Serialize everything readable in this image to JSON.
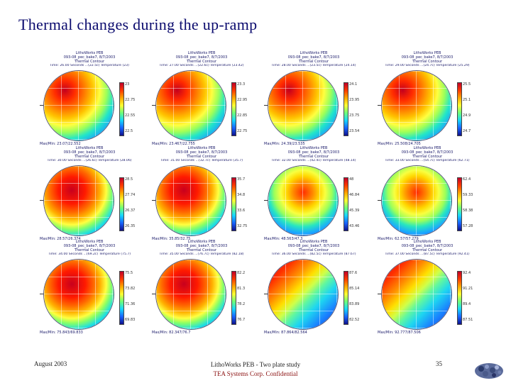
{
  "slide": {
    "title": "Thermal changes during the up-ramp"
  },
  "panels": [
    {
      "h1": "LithoWorks PEB",
      "h2": "093-08_pec_bake7, 8/7/2003",
      "h3": "Thermal Contour",
      "h4": "Time: 26.00 Seconds ...(22.5c) Temperature (23)",
      "ticks": [
        "23",
        "22.75",
        "22.55",
        "22.5"
      ],
      "maxmin": "Max/Min: 23.07/22.552",
      "temp": "cool"
    },
    {
      "h1": "LithoWorks PEB",
      "h2": "093-08_pec_bake7, 8/7/2003",
      "h3": "Thermal Contour",
      "h4": "Time: 27.00 Seconds ...(22.6c) Temperature (23.42)",
      "ticks": [
        "23.3",
        "22.95",
        "22.85",
        "22.75"
      ],
      "maxmin": "Max/Min: 23.467/22.755",
      "temp": "cool"
    },
    {
      "h1": "LithoWorks PEB",
      "h2": "093-08_pec_bake7, 8/7/2003",
      "h3": "Thermal Contour",
      "h4": "Time: 28.00 Seconds ...(23.5c) Temperature (24.14)",
      "ticks": [
        "24.1",
        "23.95",
        "23.75",
        "23.54"
      ],
      "maxmin": "Max/Min: 24.39/23.535",
      "temp": "cool"
    },
    {
      "h1": "LithoWorks PEB",
      "h2": "093-08_pec_bake7, 8/7/2003",
      "h3": "Thermal Contour",
      "h4": "Time: 29.00 Seconds ...(24.7c) Temperature (25.29)",
      "ticks": [
        "25.5",
        "25.1",
        "24.9",
        "24.7"
      ],
      "maxmin": "Max/Min: 25.508/24.705",
      "temp": "cool"
    },
    {
      "h1": "LithoWorks PEB",
      "h2": "093-08_pec_bake7, 8/7/2003",
      "h3": "Thermal Contour",
      "h4": "Time: 30.00 Seconds ...(26.6c) Temperature (28.06)",
      "ticks": [
        "28.5",
        "27.74",
        "26.37",
        "26.35"
      ],
      "maxmin": "Max/Min: 28.57/26.374",
      "temp": "warm"
    },
    {
      "h1": "LithoWorks PEB",
      "h2": "093-08_pec_bake7, 8/7/2003",
      "h3": "Thermal Contour",
      "h4": "Time: 31.00 Seconds ...(32.7c) Temperature (35.7)",
      "ticks": [
        "35.7",
        "34.8",
        "33.6",
        "32.75"
      ],
      "maxmin": "Max/Min: 35.85/32.75",
      "temp": "warm"
    },
    {
      "h1": "LithoWorks PEB",
      "h2": "093-08_pec_bake7, 8/7/2003",
      "h3": "Thermal Contour",
      "h4": "Time: 32.00 Seconds ...(42.4c) Temperature (48.14)",
      "ticks": [
        "48",
        "46.84",
        "45.39",
        "43.46"
      ],
      "maxmin": "Max/Min: 48.563/47.3",
      "temp": "mid"
    },
    {
      "h1": "LithoWorks PEB",
      "h2": "093-08_pec_bake7, 8/7/2003",
      "h3": "Thermal Contour",
      "h4": "Time: 33.00 Seconds ...(54.7c) Temperature (62.71)",
      "ticks": [
        "62.4",
        "59.33",
        "58.38",
        "57.28"
      ],
      "maxmin": "Max/Min: 62.57/57.279",
      "temp": "mid"
    },
    {
      "h1": "LithoWorks PEB",
      "h2": "093-08_pec_bake7, 8/7/2003",
      "h3": "Thermal Contour",
      "h4": "Time: 34.00 Seconds ...(69.2c) Temperature (75.7)",
      "ticks": [
        "75.5",
        "73.82",
        "71.36",
        "69.83"
      ],
      "maxmin": "Max/Min: 75.843/69.833",
      "temp": "warm"
    },
    {
      "h1": "LithoWorks PEB",
      "h2": "093-08_pec_bake7, 8/7/2003",
      "h3": "Thermal Contour",
      "h4": "Time: 35.00 Seconds ...(76.7c) Temperature (82.18)",
      "ticks": [
        "82.2",
        "81.3",
        "78.2",
        "76.7"
      ],
      "maxmin": "Max/Min: 82.347/76.7",
      "temp": "warm"
    },
    {
      "h1": "LithoWorks PEB",
      "h2": "093-08_pec_bake7, 8/7/2003",
      "h3": "Thermal Contour",
      "h4": "Time: 36.00 Seconds ...(82.5c) Temperature (87.67)",
      "ticks": [
        "87.6",
        "85.14",
        "83.89",
        "82.52"
      ],
      "maxmin": "Max/Min: 87.864/82.564",
      "temp": "diag"
    },
    {
      "h1": "LithoWorks PEB",
      "h2": "093-08_pec_bake7, 8/7/2003",
      "h3": "Thermal Contour",
      "h4": "Time: 37.00 Seconds ...(87.5c) Temperature (92.41)",
      "ticks": [
        "92.4",
        "91.21",
        "89.4",
        "87.51"
      ],
      "maxmin": "Max/Min: 92.777/87.506",
      "temp": "diag"
    }
  ],
  "footer": {
    "date": "August 2003",
    "center_line1": "LithoWorks PEB - Two plate study",
    "center_line2": "TEA Systems Corp. Confidential",
    "page": "35"
  },
  "colors": {
    "title": "#0b0b6e",
    "confidential": "#8a1010"
  }
}
